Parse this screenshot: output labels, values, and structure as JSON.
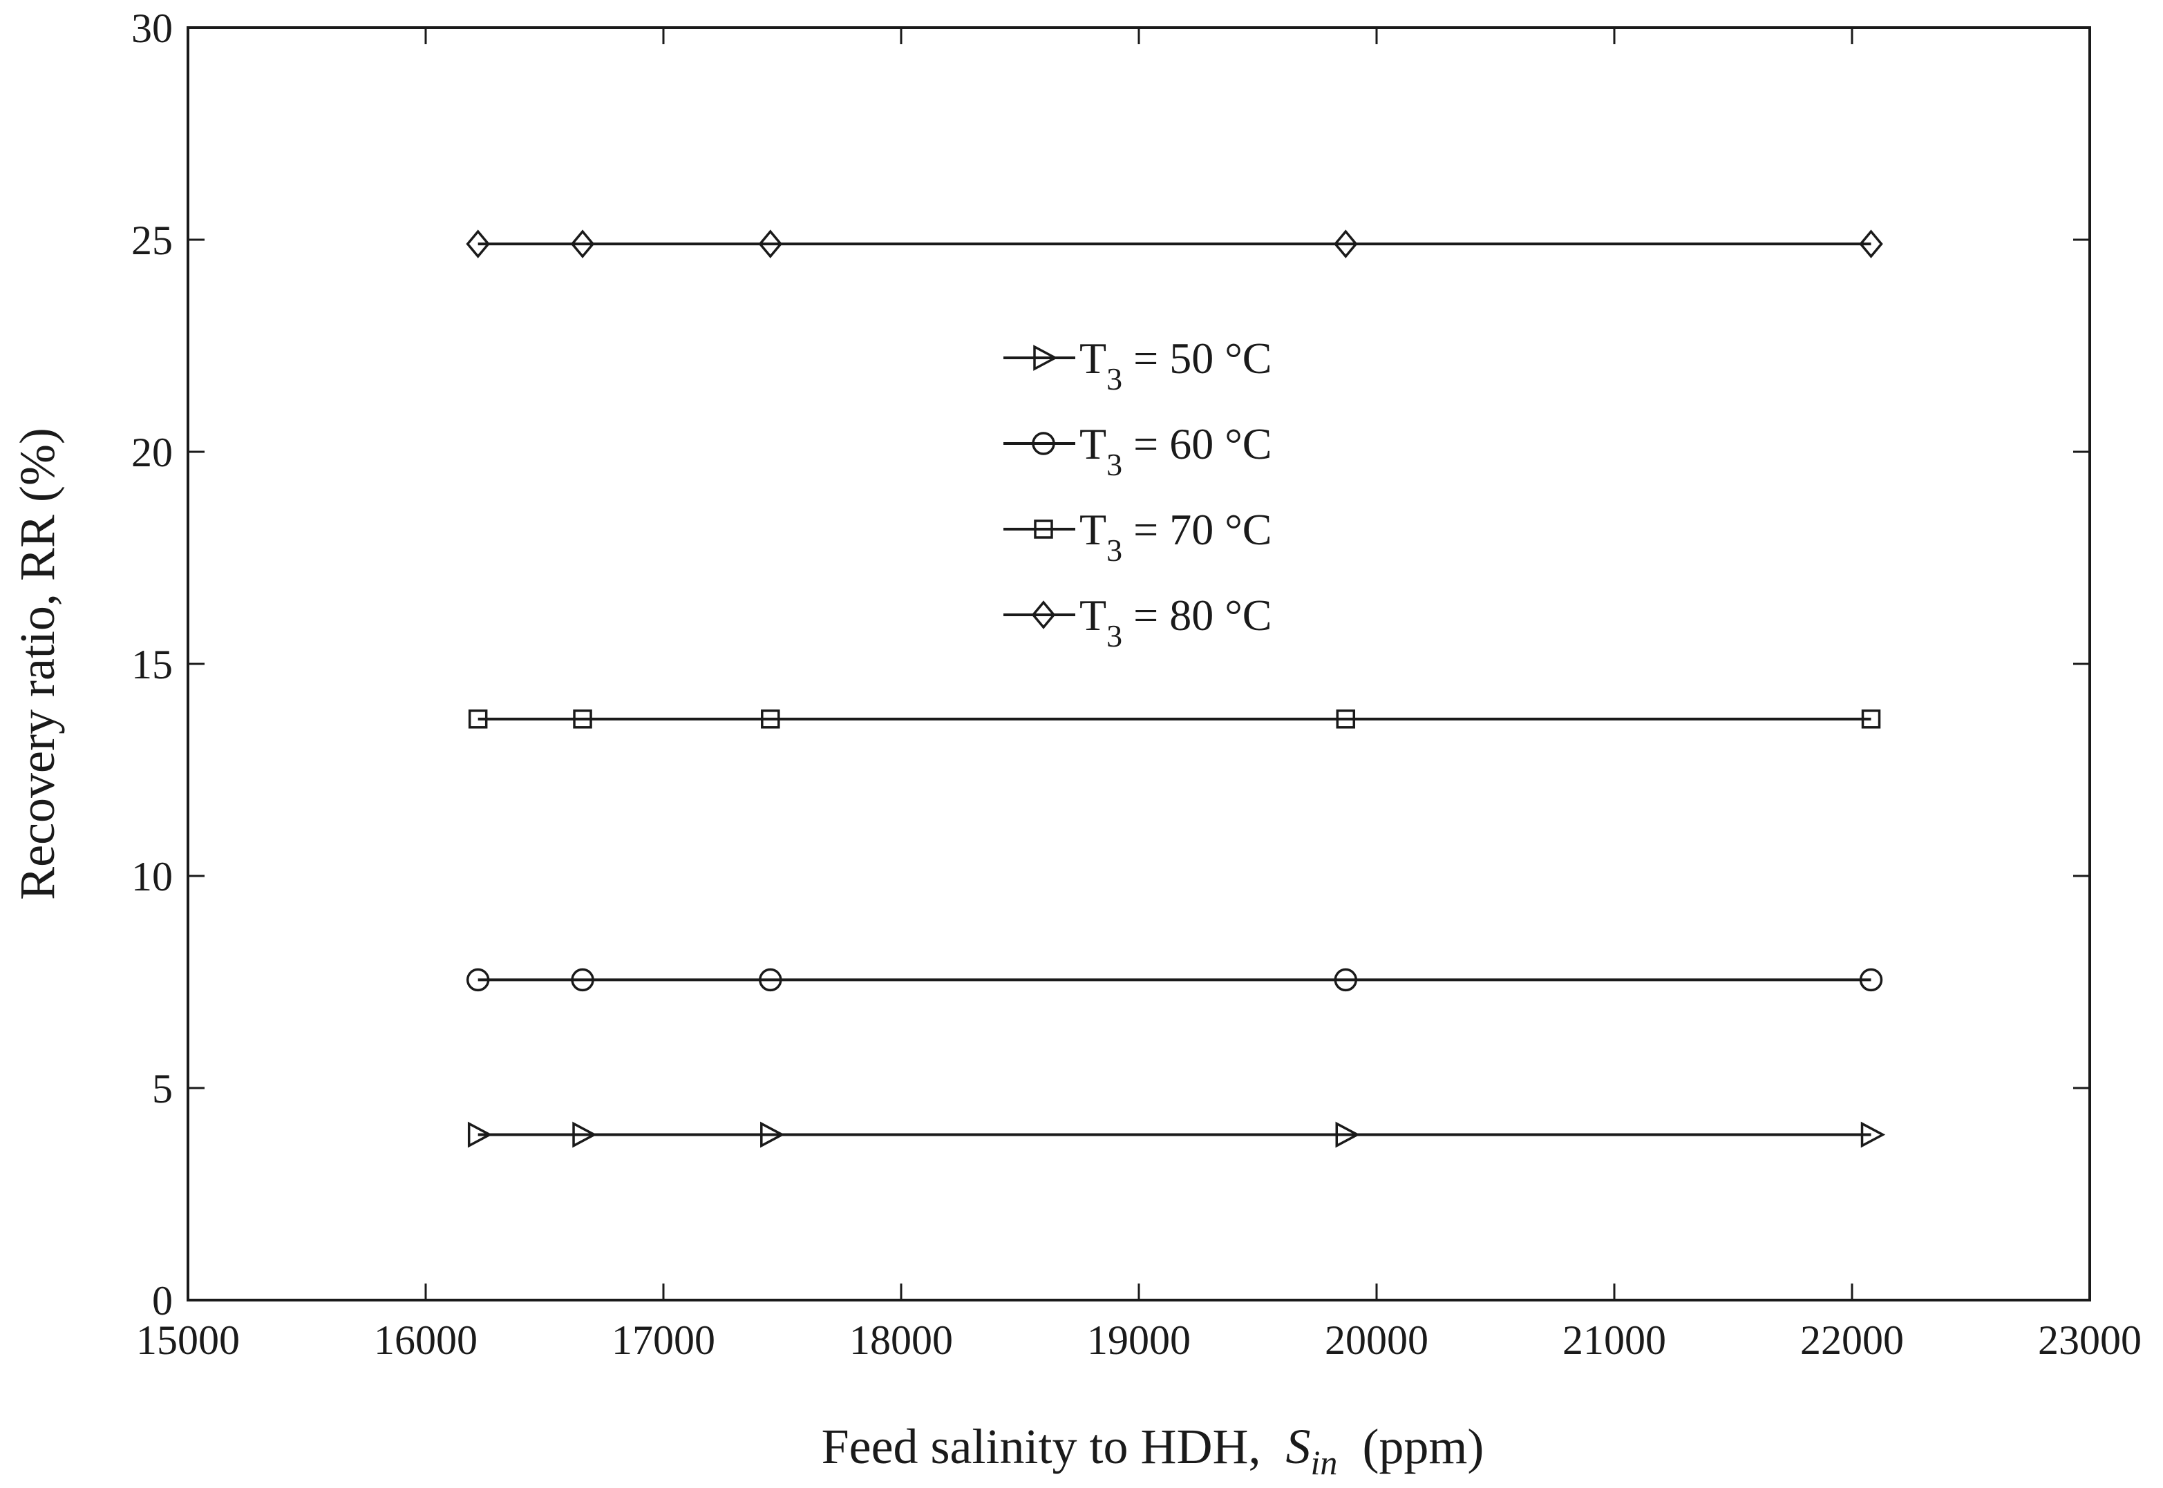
{
  "chart_data": {
    "type": "line",
    "xlabel": {
      "prefix": "Feed salinity to HDH,",
      "symbol": "S",
      "subscript": "in",
      "unit": "(ppm)"
    },
    "ylabel": "Recovery ratio, RR (%)",
    "xlim": [
      15000,
      23000
    ],
    "ylim": [
      0,
      30
    ],
    "xticks": [
      15000,
      16000,
      17000,
      18000,
      19000,
      20000,
      21000,
      22000,
      23000
    ],
    "yticks": [
      0,
      5,
      10,
      15,
      20,
      25,
      30
    ],
    "grid": false,
    "legend_position": "center",
    "x": [
      16220,
      16660,
      17450,
      19870,
      22080
    ],
    "series": [
      {
        "name": "T3 = 50 °C",
        "label_main": "T",
        "label_sub": "3",
        "label_rest": " = 50 °C",
        "marker": "triangle-right",
        "values": [
          3.9,
          3.9,
          3.9,
          3.9,
          3.9
        ]
      },
      {
        "name": "T3 = 60 °C",
        "label_main": "T",
        "label_sub": "3",
        "label_rest": " = 60 °C",
        "marker": "circle",
        "values": [
          7.55,
          7.55,
          7.55,
          7.55,
          7.55
        ]
      },
      {
        "name": "T3 = 70 °C",
        "label_main": "T",
        "label_sub": "3",
        "label_rest": " = 70 °C",
        "marker": "square",
        "values": [
          13.7,
          13.7,
          13.7,
          13.7,
          13.7
        ]
      },
      {
        "name": "T3 = 80 °C",
        "label_main": "T",
        "label_sub": "3",
        "label_rest": " = 80 °C",
        "marker": "diamond",
        "values": [
          24.9,
          24.9,
          24.9,
          24.9,
          24.9
        ]
      }
    ],
    "line_color": "#1a1a1a",
    "background": "#ffffff"
  }
}
